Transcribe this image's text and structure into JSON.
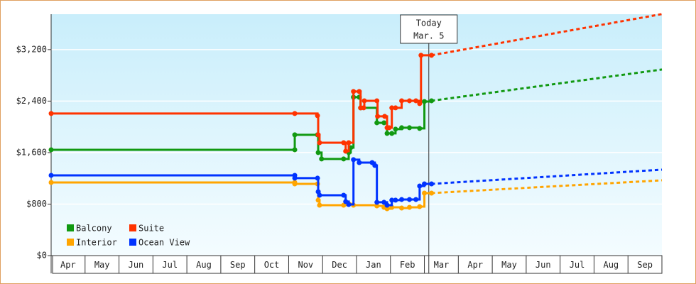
{
  "chart_data": {
    "type": "step-line",
    "xlim": [
      0,
      18
    ],
    "ylim": [
      0,
      3750
    ],
    "xticks": [
      {
        "value": 0.5,
        "label": "Apr"
      },
      {
        "value": 1.5,
        "label": "May"
      },
      {
        "value": 2.5,
        "label": "Jun"
      },
      {
        "value": 3.5,
        "label": "Jul"
      },
      {
        "value": 4.5,
        "label": "Aug"
      },
      {
        "value": 5.5,
        "label": "Sep"
      },
      {
        "value": 6.5,
        "label": "Oct"
      },
      {
        "value": 7.5,
        "label": "Nov"
      },
      {
        "value": 8.5,
        "label": "Dec"
      },
      {
        "value": 9.5,
        "label": "Jan"
      },
      {
        "value": 10.5,
        "label": "Feb"
      },
      {
        "value": 11.5,
        "label": "Mar"
      },
      {
        "value": 12.5,
        "label": "Apr"
      },
      {
        "value": 13.5,
        "label": "May"
      },
      {
        "value": 14.5,
        "label": "Jun"
      },
      {
        "value": 15.5,
        "label": "Jul"
      },
      {
        "value": 16.5,
        "label": "Aug"
      },
      {
        "value": 17.5,
        "label": "Sep"
      }
    ],
    "yticks": [
      {
        "value": 0,
        "label": "$0"
      },
      {
        "value": 800,
        "label": "$800"
      },
      {
        "value": 1600,
        "label": "$1,600"
      },
      {
        "value": 2400,
        "label": "$2,400"
      },
      {
        "value": 3200,
        "label": "$3,200"
      }
    ],
    "grid": true,
    "legend": "bottom-left",
    "today": {
      "x": 11.13,
      "label": [
        "Today",
        "Mar. 5"
      ]
    },
    "series": [
      {
        "name": "Balcony",
        "color": "#119911",
        "x": [
          0,
          7.18,
          7.18,
          7.85,
          7.87,
          7.97,
          8.62,
          8.77,
          8.83,
          8.91,
          9.08,
          9.12,
          9.6,
          9.81,
          9.9,
          10.04,
          10.15,
          10.33,
          10.56,
          10.86,
          11.0,
          11.21
        ],
        "values": [
          1644,
          1644,
          1876,
          1876,
          1600,
          1501,
          1501,
          1600,
          1677,
          2461,
          2461,
          2295,
          2063,
          2063,
          1898,
          1898,
          1964,
          1986,
          1986,
          1975,
          2394,
          2405
        ],
        "forecast": {
          "x": [
            11.21,
            18
          ],
          "values": [
            2405,
            2891
          ]
        }
      },
      {
        "name": "Suite",
        "color": "#ff3300",
        "x": [
          0,
          7.18,
          7.85,
          7.87,
          7.91,
          8.62,
          8.68,
          8.77,
          8.91,
          9.08,
          9.12,
          9.21,
          9.23,
          9.6,
          9.62,
          9.83,
          9.9,
          9.96,
          10.04,
          10.15,
          10.33,
          10.56,
          10.75,
          10.86,
          10.9,
          11.21
        ],
        "values": [
          2207,
          2207,
          2174,
          1876,
          1754,
          1754,
          1622,
          1754,
          2549,
          2549,
          2295,
          2295,
          2405,
          2405,
          2163,
          2163,
          1986,
          1986,
          2295,
          2295,
          2405,
          2405,
          2405,
          2361,
          3112,
          3112
        ],
        "forecast": {
          "x": [
            11.21,
            18
          ],
          "values": [
            3112,
            3752
          ]
        }
      },
      {
        "name": "Interior",
        "color": "#ffa500",
        "x": [
          0,
          7.18,
          7.18,
          7.85,
          7.87,
          7.91,
          8.62,
          8.77,
          8.91,
          9.6,
          9.81,
          9.9,
          10.04,
          10.33,
          10.56,
          10.86,
          11.0,
          11.21
        ],
        "values": [
          1136,
          1136,
          1114,
          1114,
          861,
          783,
          783,
          805,
          783,
          772,
          750,
          728,
          750,
          739,
          750,
          761,
          971,
          971
        ],
        "forecast": {
          "x": [
            11.21,
            18
          ],
          "values": [
            971,
            1170
          ]
        }
      },
      {
        "name": "Ocean View",
        "color": "#0033ff",
        "x": [
          0,
          7.18,
          7.18,
          7.85,
          7.87,
          7.91,
          8.62,
          8.68,
          8.77,
          8.91,
          9.08,
          9.46,
          9.54,
          9.6,
          9.81,
          9.9,
          10.04,
          10.15,
          10.33,
          10.56,
          10.75,
          10.86,
          11.0,
          11.21
        ],
        "values": [
          1247,
          1247,
          1203,
          1203,
          993,
          938,
          938,
          839,
          794,
          1490,
          1445,
          1445,
          1401,
          828,
          828,
          783,
          861,
          861,
          872,
          872,
          872,
          1081,
          1114,
          1114
        ],
        "forecast": {
          "x": [
            11.21,
            18
          ],
          "values": [
            1114,
            1335
          ]
        }
      }
    ]
  }
}
